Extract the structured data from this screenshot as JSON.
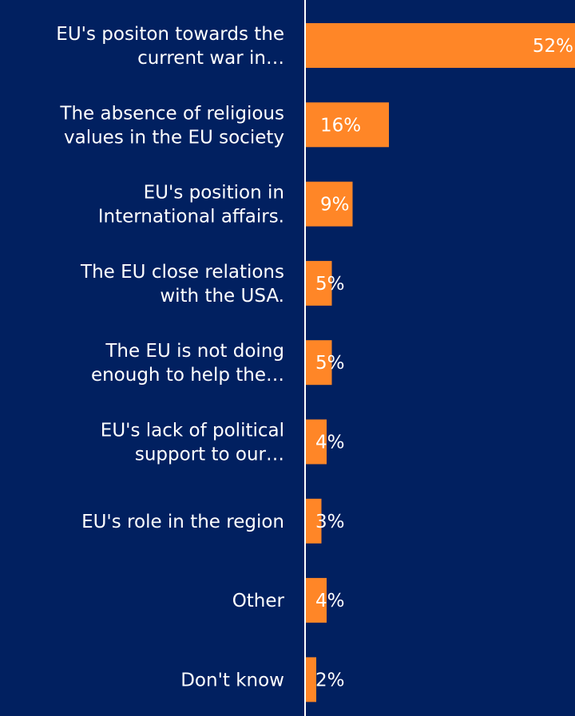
{
  "chart_data": {
    "type": "bar",
    "orientation": "horizontal",
    "categories": [
      [
        "EU's positon towards the",
        "current war in…"
      ],
      [
        "The absence of religious",
        "values in the EU society"
      ],
      [
        "EU's position in",
        "International affairs."
      ],
      [
        "The EU close relations",
        "with the USA."
      ],
      [
        "The EU is not doing",
        "enough to help the…"
      ],
      [
        "EU's lack of political",
        "support to our…"
      ],
      [
        "EU's role in the region"
      ],
      [
        "Other"
      ],
      [
        "Don't know"
      ]
    ],
    "values": [
      52,
      16,
      9,
      5,
      5,
      4,
      3,
      4,
      2
    ],
    "value_labels": [
      "52%",
      "16%",
      "9%",
      "5%",
      "5%",
      "4%",
      "3%",
      "4%",
      "2%"
    ],
    "xlim": [
      0,
      100
    ],
    "grid": false,
    "legend": "none"
  },
  "colors": {
    "background": "#012060",
    "bar": "#FF8627",
    "axis_line": "#ffffff",
    "label_text": "#ffffff",
    "value_text_on_bar": "#ffffff",
    "value_text_off_bar": "#ffffff"
  }
}
